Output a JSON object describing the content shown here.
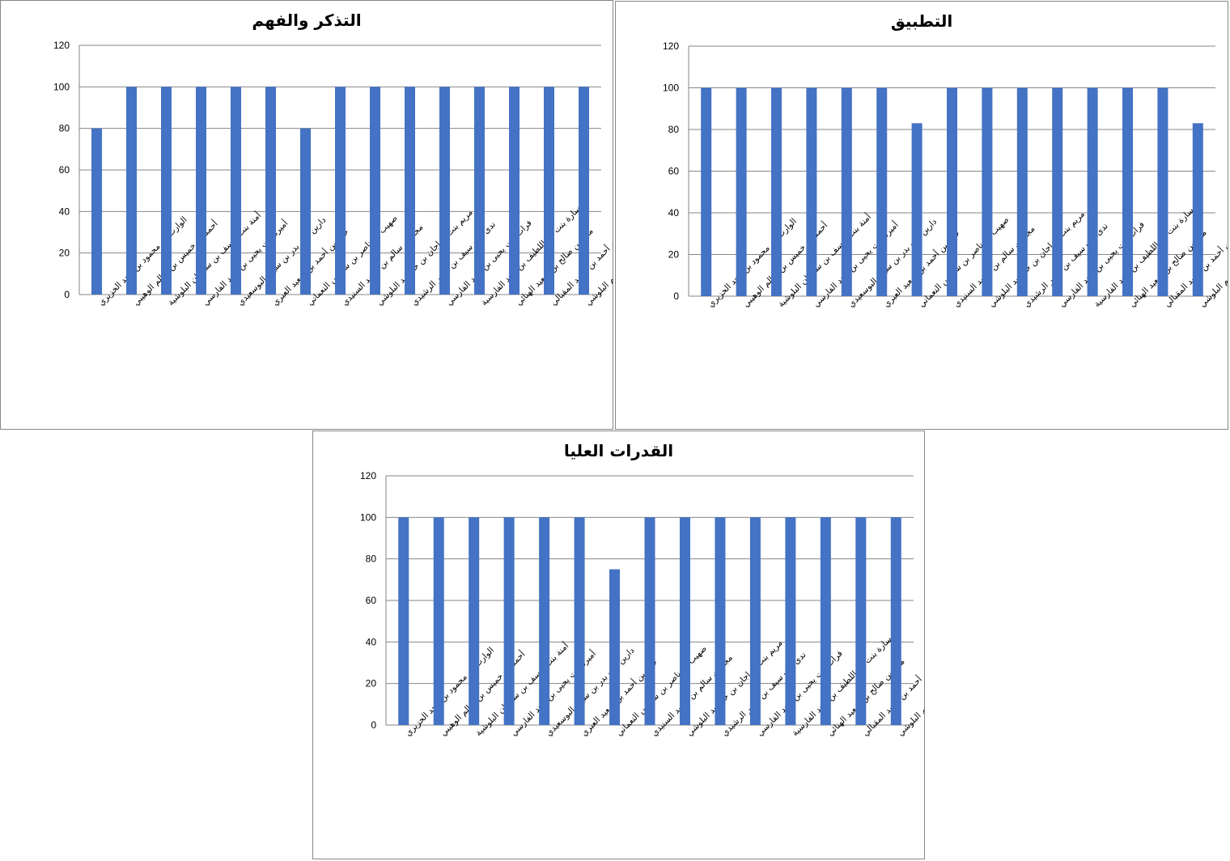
{
  "colors": {
    "bar": "#4472C4",
    "grid": "#868686",
    "text": "#000000",
    "border": "#868686"
  },
  "chart_data": [
    {
      "type": "bar",
      "title": "التذكر والفهم",
      "ylim": [
        0,
        120
      ],
      "yticks": [
        "0",
        "20",
        "40",
        "60",
        "80",
        "100",
        "120"
      ],
      "grid": true,
      "legend": "none",
      "categories": [
        "الوارث بن محمود بن مجد الخزيري",
        "أحمد بن خميس بن سالم الوهيبي",
        "أمنة بنت يوسف بن سليمان البلوشية",
        "أميرة بنت يحيى بن مجد الفارسي",
        "دارين بنت بدر بن سيف البوسعيدي",
        "حمد بن أحمد بن سعيد العبري",
        "صهيب بن ناصر بن شامس النعماني",
        "مجد بن سالم بن سعيد السنيدي",
        "مريم بنت مراجان بن خرشيد البلوشي",
        "ندى بنت سيف بن ناصر الرشيدي",
        "فرات بنت يحيى بن مجد الفارسي",
        "سارة بنت عبداللطيف بن مجد الفارسية",
        "مجد بن صالح بن سعيد الهنائي",
        "الخليل بن أحمد بن حميد المقبالي",
        "فيصل عبدالرحيم عيسى عبدالرحيم البلوشي"
      ],
      "values": [
        80,
        100,
        100,
        100,
        100,
        100,
        80,
        100,
        100,
        100,
        100,
        100,
        100,
        100,
        100
      ]
    },
    {
      "type": "bar",
      "title": "التطبيق",
      "ylim": [
        0,
        120
      ],
      "yticks": [
        "0",
        "20",
        "40",
        "60",
        "80",
        "100",
        "120"
      ],
      "grid": true,
      "legend": "none",
      "categories": [
        "الوارث بن محمود بن مجد الخزيري",
        "أحمد بن خميس بن سالم الوهيبي",
        "أمنة بنت يوسف بن سليمان البلوشية",
        "أميرة بنت يحيى بن مجد الفارسي",
        "دارين بنت بدر بن سيف البوسعيدي",
        "حمد بن أحمد بن سعيد العبري",
        "صهيب بن ناصر بن شامس النعماني",
        "مجد بن سالم بن سعيد السنيدي",
        "مريم بنت مراجان بن خرشيد البلوشي",
        "ندى بنت سيف بن ناصر الرشيدي",
        "فرات بنت يحيى بن مجد الفارسي",
        "سارة بنت عبداللطيف بن مجد الفارسية",
        "مجد بن صالح بن سعيد الهنائي",
        "الخليل بن أحمد بن حميد المقبالي",
        "فيصل عبدالرحيم عيسى عبدالرحيم البلوشي"
      ],
      "values": [
        100,
        100,
        100,
        100,
        100,
        100,
        83,
        100,
        100,
        100,
        100,
        100,
        100,
        100,
        83
      ]
    },
    {
      "type": "bar",
      "title": "القدرات العليا",
      "ylim": [
        0,
        120
      ],
      "yticks": [
        "0",
        "20",
        "40",
        "60",
        "80",
        "100",
        "120"
      ],
      "grid": true,
      "legend": "none",
      "categories": [
        "الوارث بن محمود بن مجد الخزيري",
        "أحمد بن خميس بن سالم الوهيبي",
        "أمنة بنت يوسف بن سليمان البلوشية",
        "أميرة بنت يحيى بن مجد الفارسي",
        "دارين بنت بدر بن سيف البوسعيدي",
        "حمد بن أحمد بن سعيد العبري",
        "صهيب بن ناصر بن شامس النعماني",
        "مجد بن سالم بن سعيد السنيدي",
        "مريم بنت مراجان بن خرشيد البلوشي",
        "ندى بنت سيف بن ناصر الرشيدي",
        "فرات بنت يحيى بن مجد الفارسي",
        "سارة بنت عبداللطيف بن مجد الفارسية",
        "مجد بن صالح بن سعيد الهنائي",
        "الخليل بن أحمد بن حميد المقبالي",
        "فيصل عبدالرحيم عيسى عبدالرحيم البلوشي"
      ],
      "values": [
        100,
        100,
        100,
        100,
        100,
        100,
        75,
        100,
        100,
        100,
        100,
        100,
        100,
        100,
        100
      ]
    }
  ]
}
